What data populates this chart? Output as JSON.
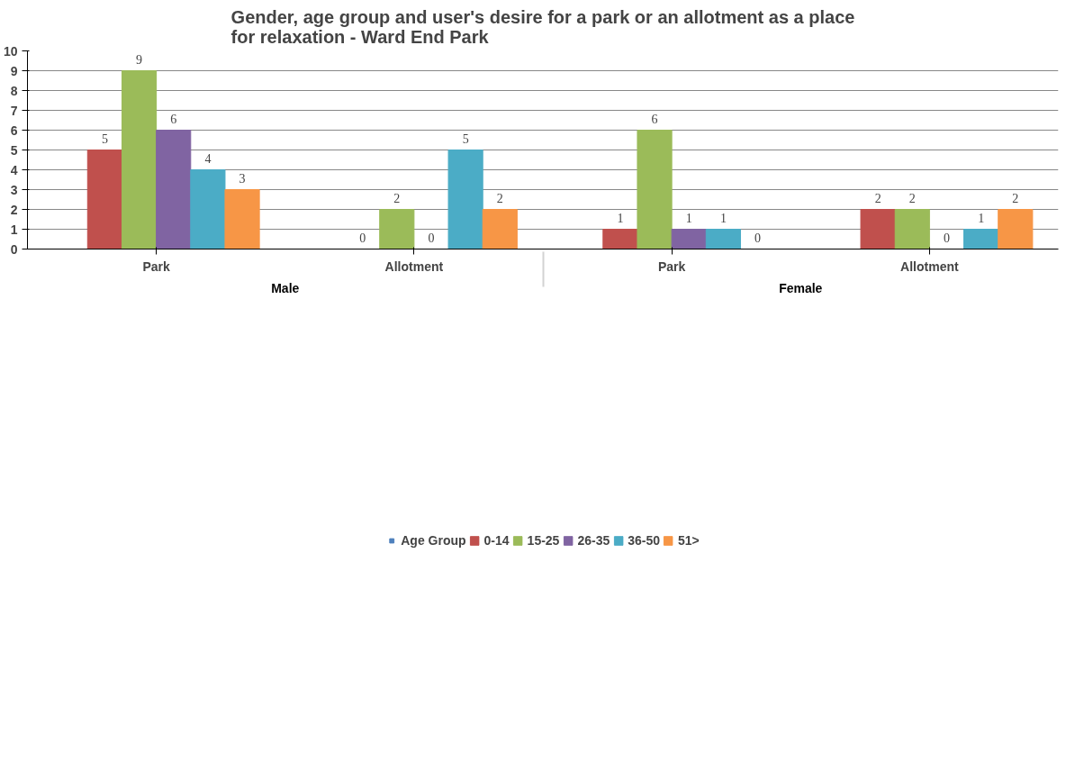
{
  "chart_data": {
    "type": "bar",
    "title": "Gender, age group and user's desire for a park or an allotment as a place\nfor relaxation  - Ward End Park",
    "categories": [
      "Park",
      "Allotment",
      "Park",
      "Allotment"
    ],
    "annotations": [
      "Male",
      "Female"
    ],
    "series": [
      {
        "name": "Age Group",
        "color": "#4f81bd",
        "values": [
          null,
          null,
          null,
          null
        ]
      },
      {
        "name": "0-14",
        "color": "#c0504d",
        "values": [
          5,
          0,
          1,
          2
        ]
      },
      {
        "name": "15-25",
        "color": "#9bbb59",
        "values": [
          9,
          2,
          6,
          2
        ]
      },
      {
        "name": "26-35",
        "color": "#8064a2",
        "values": [
          6,
          0,
          1,
          0
        ]
      },
      {
        "name": "36-50",
        "color": "#4bacc6",
        "values": [
          4,
          5,
          1,
          1
        ]
      },
      {
        "name": "51>",
        "color": "#f79646",
        "values": [
          3,
          2,
          0,
          2
        ]
      }
    ],
    "ylim": [
      0,
      10
    ],
    "yticks": [
      0,
      1,
      2,
      3,
      4,
      5,
      6,
      7,
      8,
      9,
      10
    ],
    "grid": "y",
    "data_labels": true,
    "legend": "bottom"
  }
}
